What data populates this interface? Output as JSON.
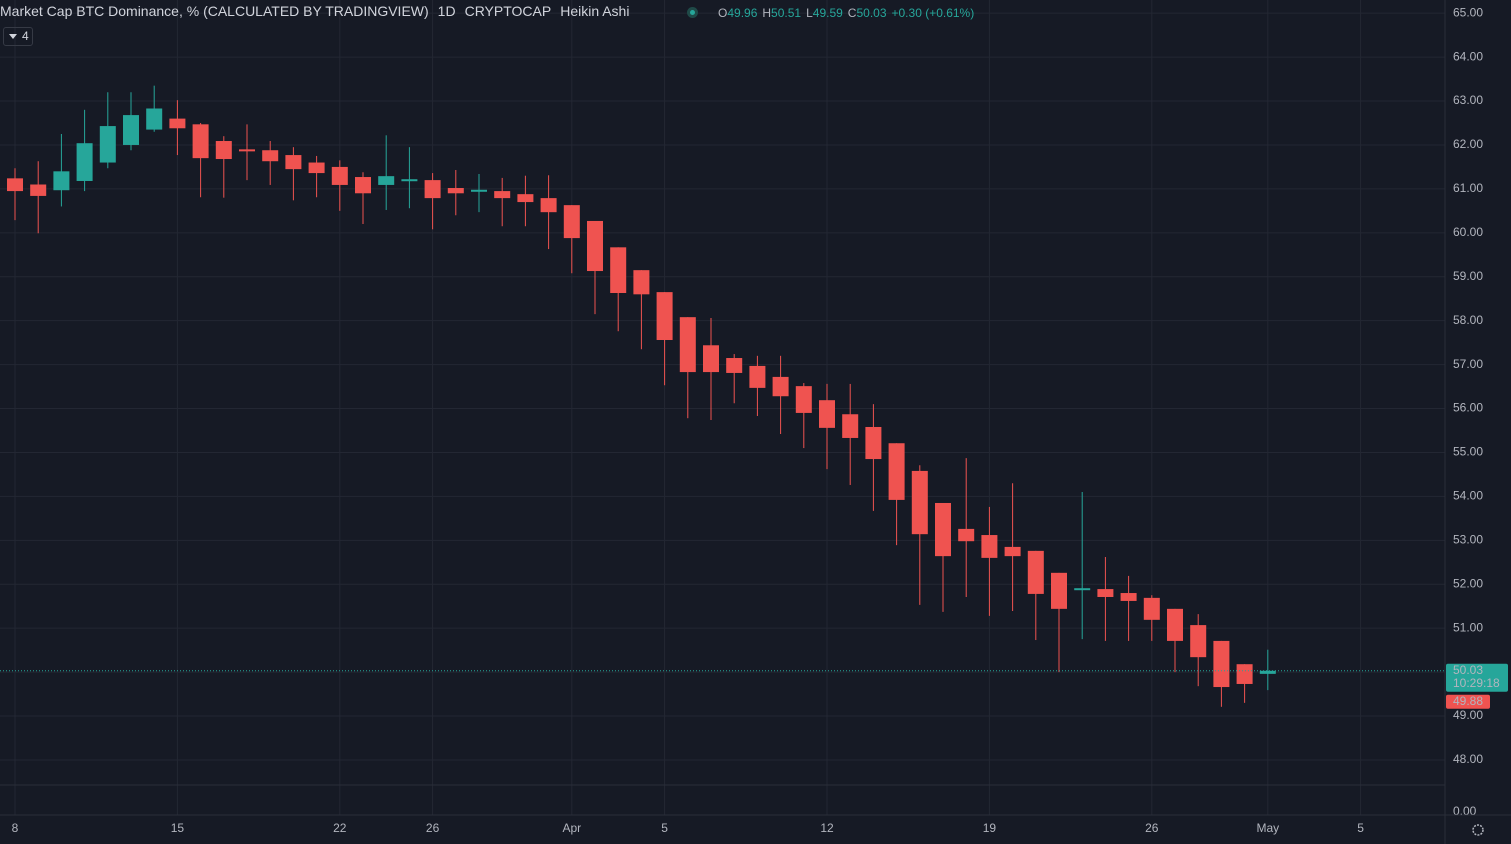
{
  "header": {
    "title": "Market Cap BTC Dominance, % (CALCULATED BY TRADINGVIEW)",
    "interval": "1D",
    "exchange": "CRYPTOCAP",
    "chart_style": "Heikin Ashi",
    "ohlc_labels": [
      "O",
      "H",
      "L",
      "C"
    ],
    "change": "+0.30 (+0.61%)",
    "indicator_count": "4"
  },
  "chart_data": {
    "type": "candlestick",
    "categories": [
      "8",
      null,
      null,
      null,
      null,
      null,
      null,
      "15",
      null,
      null,
      null,
      null,
      null,
      null,
      "22",
      null,
      null,
      null,
      "26",
      null,
      null,
      null,
      null,
      null,
      "Apr",
      null,
      null,
      null,
      "5",
      null,
      null,
      null,
      null,
      null,
      null,
      "12",
      null,
      null,
      null,
      null,
      null,
      null,
      "19",
      null,
      null,
      null,
      null,
      null,
      null,
      "26",
      null,
      null,
      null,
      null,
      "May",
      null,
      null,
      null,
      "5"
    ],
    "open": [
      61.24,
      61.1,
      60.97,
      61.18,
      61.6,
      62.0,
      62.35,
      62.6,
      62.47,
      62.09,
      61.9,
      61.88,
      61.77,
      61.6,
      61.5,
      61.27,
      61.09,
      61.2,
      61.2,
      61.02,
      60.96,
      60.95,
      60.88,
      60.79,
      60.63,
      60.27,
      59.67,
      59.15,
      58.65,
      58.08,
      57.44,
      57.15,
      56.97,
      56.72,
      56.51,
      56.19,
      55.87,
      55.58,
      55.21,
      54.58,
      53.85,
      53.26,
      53.12,
      52.85,
      52.76,
      52.26,
      51.87,
      51.89,
      51.8,
      51.69,
      51.44,
      51.07,
      50.71,
      50.18,
      49.96,
      null,
      null,
      null,
      null
    ],
    "high": [
      61.47,
      61.63,
      62.25,
      62.8,
      63.2,
      63.2,
      63.35,
      63.02,
      62.5,
      62.2,
      62.47,
      62.09,
      61.95,
      61.75,
      61.65,
      61.38,
      62.22,
      61.95,
      61.36,
      61.43,
      61.34,
      61.25,
      61.3,
      61.31,
      60.63,
      60.27,
      59.67,
      59.15,
      58.65,
      58.08,
      58.06,
      57.24,
      57.2,
      57.2,
      56.58,
      56.56,
      56.56,
      56.1,
      55.21,
      54.71,
      53.85,
      54.87,
      53.76,
      54.3,
      52.76,
      52.26,
      54.1,
      52.62,
      52.19,
      51.75,
      51.44,
      51.32,
      50.71,
      50.18,
      50.51,
      null,
      null,
      null,
      null
    ],
    "low": [
      60.29,
      59.99,
      60.6,
      60.95,
      61.47,
      61.88,
      62.3,
      61.77,
      60.81,
      60.8,
      61.2,
      61.09,
      60.74,
      60.81,
      60.5,
      60.2,
      60.52,
      60.56,
      60.08,
      60.4,
      60.47,
      60.15,
      60.15,
      59.63,
      59.08,
      58.15,
      57.76,
      57.35,
      56.53,
      55.78,
      55.74,
      56.12,
      55.83,
      55.42,
      55.1,
      54.62,
      54.26,
      53.67,
      52.89,
      51.53,
      51.37,
      51.71,
      51.28,
      51.39,
      50.73,
      50.0,
      50.75,
      50.71,
      50.71,
      50.71,
      50.0,
      49.68,
      49.21,
      49.3,
      49.59,
      null,
      null,
      null,
      null
    ],
    "close": [
      60.95,
      60.84,
      61.4,
      62.04,
      62.43,
      62.68,
      62.83,
      62.38,
      61.7,
      61.68,
      61.87,
      61.63,
      61.45,
      61.36,
      61.09,
      60.9,
      61.29,
      61.22,
      60.79,
      60.9,
      60.98,
      60.79,
      60.7,
      60.47,
      59.88,
      59.13,
      58.63,
      58.6,
      57.56,
      56.83,
      56.83,
      56.81,
      56.47,
      56.28,
      55.9,
      55.56,
      55.33,
      54.85,
      53.92,
      53.14,
      52.64,
      52.98,
      52.6,
      52.64,
      51.78,
      51.44,
      51.91,
      51.71,
      51.62,
      51.19,
      50.71,
      50.34,
      49.66,
      49.73,
      50.03,
      null,
      null,
      null,
      null
    ],
    "up_color": "#26a69a",
    "down_color": "#ef5350",
    "ylim": [
      47.43,
      65.3
    ],
    "yticks": [
      {
        "value": 48,
        "label": "48.00"
      },
      {
        "value": 49,
        "label": "49.00"
      },
      {
        "value": 50,
        "label": "50.00"
      },
      {
        "value": 51,
        "label": "51.00"
      },
      {
        "value": 52,
        "label": "52.00"
      },
      {
        "value": 53,
        "label": "53.00"
      },
      {
        "value": 54,
        "label": "54.00"
      },
      {
        "value": 55,
        "label": "55.00"
      },
      {
        "value": 56,
        "label": "56.00"
      },
      {
        "value": 57,
        "label": "57.00"
      },
      {
        "value": 58,
        "label": "58.00"
      },
      {
        "value": 59,
        "label": "59.00"
      },
      {
        "value": 60,
        "label": "60.00"
      },
      {
        "value": 61,
        "label": "61.00"
      },
      {
        "value": 62,
        "label": "62.00"
      },
      {
        "value": 63,
        "label": "63.00"
      },
      {
        "value": 64,
        "label": "64.00"
      },
      {
        "value": 65,
        "label": "65.00"
      }
    ],
    "volume_yticks": [
      {
        "value": 0,
        "label": "0.00"
      }
    ],
    "countdown": "10:29:18",
    "marker_price": 49.88,
    "grid": true
  }
}
